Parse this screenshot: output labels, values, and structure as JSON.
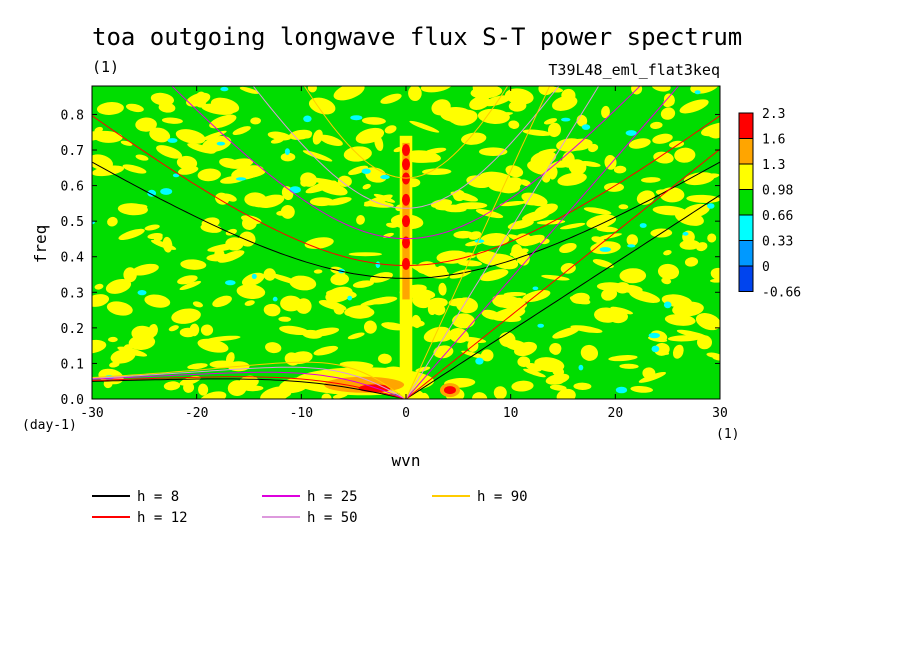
{
  "chart_data": {
    "type": "heatmap",
    "title": "toa outgoing longwave flux S-T power spectrum",
    "units_label": "(1)",
    "run_label": "T39L48_eml_flat3keq",
    "xlabel": "wvn",
    "ylabel": "freq",
    "x_units": "(1)",
    "y_units": "(day-1)",
    "xlim": [
      -30,
      30
    ],
    "ylim": [
      0,
      0.88
    ],
    "xticks": [
      "-30",
      "-20",
      "-10",
      "0",
      "10",
      "20",
      "30"
    ],
    "yticks": [
      "0.0",
      "0.1",
      "0.2",
      "0.3",
      "0.4",
      "0.5",
      "0.6",
      "0.7",
      "0.8"
    ],
    "colorbar": {
      "levels": [
        "2.3",
        "1.6",
        "1.3",
        "0.98",
        "0.66",
        "0.33",
        "0",
        "-0.66"
      ],
      "colors": [
        "#ff0000",
        "#ffa500",
        "#ffff00",
        "#00dd00",
        "#00ffff",
        "#0099ff",
        "#0044ee"
      ]
    },
    "dispersion_curves": [
      {
        "name": "h =  8",
        "color": "#000000"
      },
      {
        "name": "h = 12",
        "color": "#ff0000"
      },
      {
        "name": "h = 25",
        "color": "#dd00dd"
      },
      {
        "name": "h = 50",
        "color": "#dd99dd"
      },
      {
        "name": "h = 90",
        "color": "#ffcc00"
      }
    ]
  }
}
